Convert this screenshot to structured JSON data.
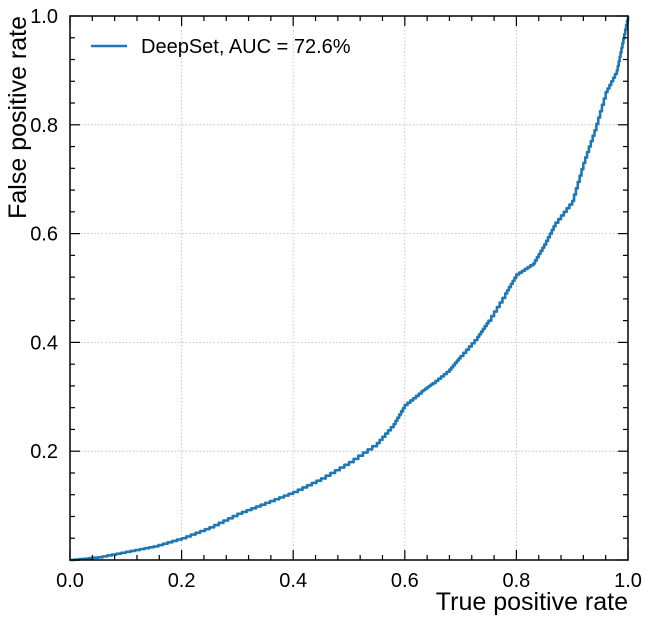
{
  "chart_data": {
    "type": "line",
    "title": "",
    "xlabel": "True positive rate",
    "ylabel": "False positive rate",
    "xlim": [
      0.0,
      1.0
    ],
    "ylim": [
      0.0,
      1.0
    ],
    "grid": true,
    "legend_position": "top-left",
    "x_ticks": [
      0.0,
      0.2,
      0.4,
      0.6,
      0.8,
      1.0
    ],
    "x_tick_labels": [
      "0.0",
      "0.2",
      "0.4",
      "0.6",
      "0.8",
      "1.0"
    ],
    "y_ticks": [
      0.2,
      0.4,
      0.6,
      0.8,
      1.0
    ],
    "y_tick_labels": [
      "0.2",
      "0.4",
      "0.6",
      "0.8",
      "1.0"
    ],
    "series": [
      {
        "name": "DeepSet, AUC = 72.6%",
        "color": "#1f77b4",
        "x": [
          0.0,
          0.05,
          0.1,
          0.15,
          0.2,
          0.25,
          0.3,
          0.35,
          0.4,
          0.45,
          0.5,
          0.55,
          0.58,
          0.6,
          0.63,
          0.65,
          0.68,
          0.7,
          0.73,
          0.75,
          0.78,
          0.8,
          0.83,
          0.85,
          0.87,
          0.9,
          0.92,
          0.94,
          0.96,
          0.98,
          0.99,
          1.0
        ],
        "y": [
          0.0,
          0.005,
          0.015,
          0.025,
          0.04,
          0.06,
          0.085,
          0.105,
          0.125,
          0.15,
          0.18,
          0.215,
          0.25,
          0.285,
          0.31,
          0.325,
          0.35,
          0.375,
          0.41,
          0.44,
          0.49,
          0.525,
          0.545,
          0.58,
          0.62,
          0.66,
          0.73,
          0.79,
          0.86,
          0.9,
          0.95,
          1.0
        ]
      }
    ]
  }
}
